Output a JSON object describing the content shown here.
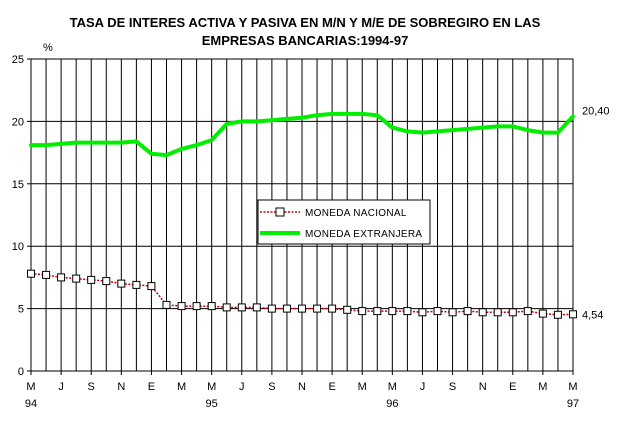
{
  "chart_data": {
    "type": "line",
    "title_line1": "TASA DE INTERES ACTIVA Y PASIVA EN M/N Y M/E DE SOBREGIRO EN LAS",
    "title_line2": "EMPRESAS BANCARIAS:1994-97",
    "ylabel": "%",
    "ylim": [
      0,
      25
    ],
    "yticks": [
      0,
      5,
      10,
      15,
      20,
      25
    ],
    "grid": "vertical lines at each month, horizontal lines at 5, 10, 15, 20",
    "x_tick_labels": [
      "M",
      "J",
      "S",
      "N",
      "E",
      "M",
      "M",
      "J",
      "S",
      "N",
      "E",
      "M",
      "M",
      "J",
      "S",
      "N",
      "E",
      "M",
      "M"
    ],
    "x_tick_index": [
      0,
      2,
      4,
      6,
      8,
      10,
      12,
      14,
      16,
      18,
      20,
      22,
      24,
      26,
      28,
      30,
      32,
      34,
      36
    ],
    "year_labels": [
      {
        "label": "94",
        "index": 0
      },
      {
        "label": "95",
        "index": 12
      },
      {
        "label": "96",
        "index": 24
      },
      {
        "label": "97",
        "index": 36
      }
    ],
    "x_count": 37,
    "legend_position": "center",
    "series": [
      {
        "name": "MONEDA NACIONAL",
        "color": "#cc0000",
        "marker": "square",
        "end_label": "4,54",
        "values": [
          7.8,
          7.7,
          7.5,
          7.4,
          7.3,
          7.2,
          7.0,
          6.9,
          6.8,
          5.3,
          5.2,
          5.2,
          5.2,
          5.1,
          5.1,
          5.1,
          5.0,
          5.0,
          5.0,
          5.0,
          5.0,
          4.9,
          4.8,
          4.8,
          4.8,
          4.8,
          4.7,
          4.8,
          4.7,
          4.8,
          4.7,
          4.7,
          4.7,
          4.8,
          4.6,
          4.5,
          4.54
        ]
      },
      {
        "name": "MONEDA EXTRANJERA",
        "color": "#00ee00",
        "marker": "none",
        "end_label": "20,40",
        "values": [
          18.1,
          18.1,
          18.2,
          18.3,
          18.3,
          18.3,
          18.3,
          18.4,
          17.4,
          17.3,
          17.8,
          18.1,
          18.5,
          19.8,
          20.0,
          20.0,
          20.1,
          20.2,
          20.3,
          20.5,
          20.6,
          20.6,
          20.6,
          20.5,
          19.5,
          19.2,
          19.1,
          19.2,
          19.3,
          19.4,
          19.5,
          19.6,
          19.6,
          19.3,
          19.1,
          19.1,
          20.4
        ]
      }
    ]
  }
}
